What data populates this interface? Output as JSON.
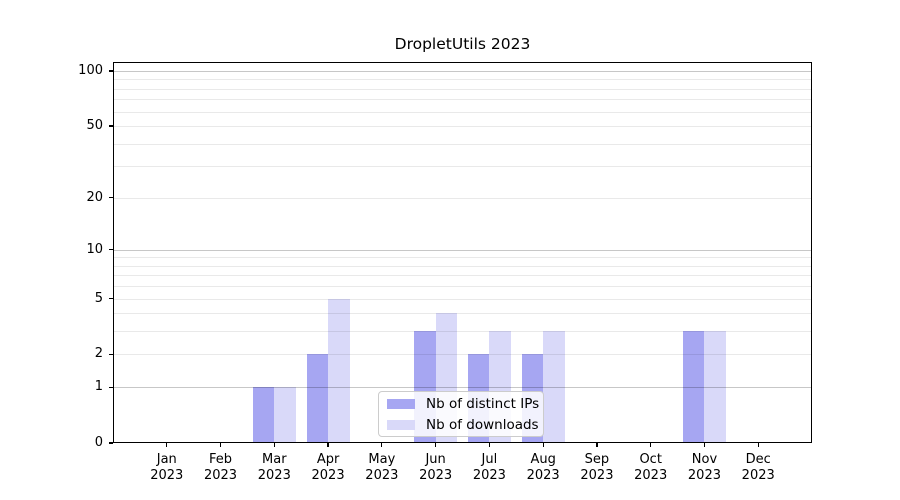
{
  "title": "DropletUtils 2023",
  "chart_data": {
    "type": "bar",
    "title": "DropletUtils 2023",
    "categories": [
      "Jan",
      "Feb",
      "Mar",
      "Apr",
      "May",
      "Jun",
      "Jul",
      "Aug",
      "Sep",
      "Oct",
      "Nov",
      "Dec"
    ],
    "year_label": "2023",
    "series": [
      {
        "name": "Nb of distinct IPs",
        "color": "#a6a6f2",
        "values": [
          0,
          0,
          1,
          2,
          0,
          3,
          2,
          2,
          0,
          0,
          3,
          0
        ]
      },
      {
        "name": "Nb of downloads",
        "color": "#d9d9f9",
        "values": [
          0,
          0,
          1,
          5,
          0,
          4,
          3,
          3,
          0,
          0,
          3,
          0
        ]
      }
    ],
    "y_axis": {
      "scale": "log1p",
      "tick_values": [
        0,
        1,
        2,
        5,
        10,
        20,
        50,
        100
      ],
      "tick_labels": [
        "0",
        "1",
        "2",
        "5",
        "10",
        "20",
        "50",
        "100"
      ],
      "ylim": [
        0,
        112
      ],
      "major_gridlines": [
        1,
        10,
        100
      ],
      "minor_gridlines": [
        2,
        3,
        4,
        5,
        6,
        7,
        8,
        9,
        20,
        30,
        40,
        50,
        60,
        70,
        80,
        90
      ]
    },
    "x_axis": {
      "tick_count": 12
    },
    "legend": {
      "position": "lower-center",
      "entries": [
        {
          "label": "Nb of distinct IPs",
          "color": "#a6a6f2"
        },
        {
          "label": "Nb of downloads",
          "color": "#d9d9f9"
        }
      ]
    },
    "grid": true,
    "colors": {
      "background": "#ffffff",
      "axis": "#000000",
      "major_grid": "#c8c8c8",
      "minor_grid": "#eaeaea"
    }
  }
}
